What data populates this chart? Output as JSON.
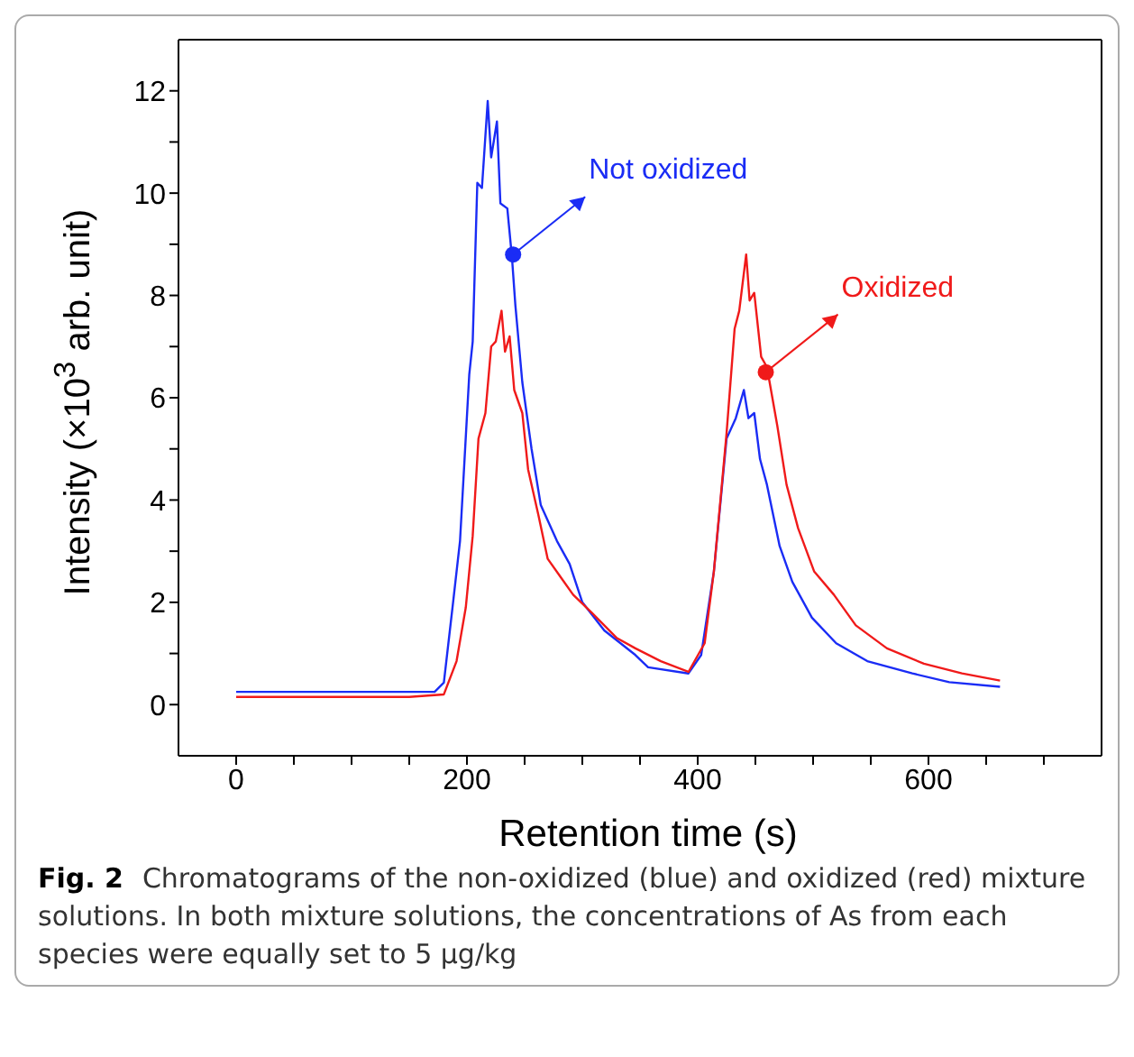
{
  "chart_data": {
    "type": "line",
    "xlabel": "Retention time (s)",
    "ylabel": "Intensity (×10$^{3}$ arb. unit)",
    "xlim": [
      -50,
      750
    ],
    "ylim": [
      -1,
      13
    ],
    "xticks": [
      0,
      {
        "value": 50,
        "label": null
      },
      {
        "value": 100,
        "label": null
      },
      {
        "value": 150,
        "label": null
      },
      200,
      {
        "value": 250,
        "label": null
      },
      {
        "value": 300,
        "label": null
      },
      {
        "value": 350,
        "label": null
      },
      400,
      {
        "value": 450,
        "label": null
      },
      {
        "value": 500,
        "label": null
      },
      {
        "value": 550,
        "label": null
      },
      600,
      {
        "value": 650,
        "label": null
      },
      {
        "value": 700,
        "label": null
      }
    ],
    "yticks": [
      0,
      {
        "value": 1,
        "label": null
      },
      2,
      {
        "value": 3,
        "label": null
      },
      4,
      {
        "value": 5,
        "label": null
      },
      6,
      {
        "value": 7,
        "label": null
      },
      8,
      {
        "value": 9,
        "label": null
      },
      10,
      {
        "value": 11,
        "label": null
      },
      12
    ],
    "grid": false,
    "marker": "none",
    "line_style": "solid",
    "series": [
      {
        "color": "#1a2cf5",
        "x": [
          0,
          50,
          100,
          150,
          172,
          180,
          188,
          194,
          202,
          205,
          209,
          213,
          218,
          221,
          226,
          229,
          235,
          239,
          242,
          248,
          256,
          264,
          278,
          289,
          300,
          319,
          346,
          357,
          392,
          403,
          414,
          425,
          433,
          440,
          444,
          449,
          454,
          460,
          471,
          482,
          499,
          520,
          547,
          586,
          618,
          662
        ],
        "values": [
          0.25,
          0.25,
          0.25,
          0.25,
          0.25,
          0.43,
          2.0,
          3.2,
          6.45,
          7.1,
          10.2,
          10.1,
          11.8,
          10.7,
          11.4,
          9.8,
          9.7,
          8.75,
          7.8,
          6.3,
          5.0,
          3.9,
          3.2,
          2.75,
          2.0,
          1.45,
          0.97,
          0.73,
          0.61,
          0.97,
          2.6,
          5.2,
          5.6,
          6.15,
          5.6,
          5.7,
          4.8,
          4.3,
          3.1,
          2.4,
          1.7,
          1.2,
          0.85,
          0.61,
          0.44,
          0.35
        ]
      },
      {
        "color": "#f01a1a",
        "x": [
          0,
          50,
          100,
          150,
          180,
          191,
          199,
          205,
          210,
          216,
          221,
          225,
          230,
          233,
          237,
          241,
          248,
          253,
          262,
          270,
          281,
          292,
          308,
          330,
          346,
          368,
          392,
          406,
          414,
          425,
          432,
          436,
          442,
          445,
          449,
          455,
          460,
          469,
          477,
          487,
          501,
          518,
          537,
          564,
          596,
          629,
          662
        ],
        "values": [
          0.15,
          0.15,
          0.15,
          0.15,
          0.2,
          0.85,
          1.9,
          3.3,
          5.2,
          5.7,
          7.0,
          7.1,
          7.7,
          6.9,
          7.2,
          6.15,
          5.7,
          4.6,
          3.7,
          2.85,
          2.5,
          2.15,
          1.8,
          1.3,
          1.1,
          0.85,
          0.64,
          1.2,
          2.6,
          5.3,
          7.35,
          7.7,
          8.8,
          7.9,
          8.05,
          6.8,
          6.6,
          5.45,
          4.3,
          3.45,
          2.6,
          2.15,
          1.55,
          1.1,
          0.8,
          0.61,
          0.47
        ]
      }
    ],
    "annotations": [
      {
        "text": "Not oxidized",
        "x": 240,
        "y": 8.8
      },
      {
        "text": "Oxidized",
        "x": 459,
        "y": 6.5
      },
      "Fig. 2",
      "Chromatograms of the non-oxidized (blue) and oxidized (red) mixture solutions. In both mixture solutions, the concentrations of As from each species were equally set to 5 µg/kg"
    ]
  }
}
